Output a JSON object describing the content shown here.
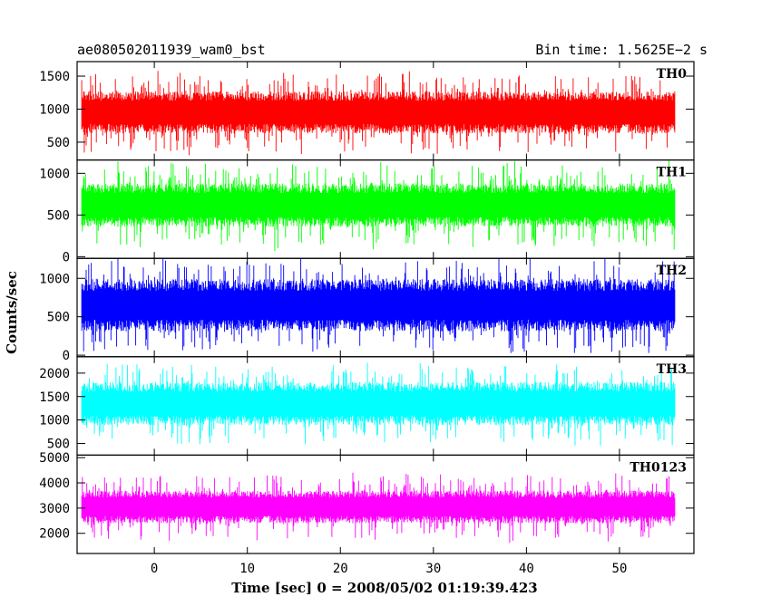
{
  "header": {
    "object_name": "ae080502011939_wam0_bst",
    "bin_time": "Bin time: 1.5625E−2 s"
  },
  "chart_data": {
    "type": "line",
    "title": "ae080502011939_wam0_bst",
    "subtitle": "Bin time: 1.5625E−2 s",
    "xlabel": "Time [sec] 0 = 2008/05/02 01:19:39.423",
    "ylabel": "Counts/sec",
    "xlim": [
      -8.3,
      58
    ],
    "x_ticks": [
      0,
      10,
      20,
      30,
      40,
      50
    ],
    "x_tick_labels": [
      "0",
      "10",
      "20",
      "30",
      "40",
      "50"
    ],
    "data_x_range": [
      -7.8,
      56.0
    ],
    "grid": false,
    "panels": [
      {
        "name": "TH0",
        "color": "#ff0000",
        "ylim": [
          230,
          1720
        ],
        "ticks": [
          500,
          1000,
          1500
        ],
        "tick_labels": [
          "500",
          "1000",
          "1500"
        ],
        "center": 950,
        "band": 320,
        "spike": 330,
        "floor": 230,
        "ceil": 1720
      },
      {
        "name": "TH1",
        "color": "#00ff00",
        "ylim": [
          -20,
          1160
        ],
        "ticks": [
          0,
          500,
          1000
        ],
        "tick_labels": [
          "0",
          "500",
          "1000"
        ],
        "center": 620,
        "band": 260,
        "spike": 300,
        "floor": 40,
        "ceil": 1160
      },
      {
        "name": "TH2",
        "color": "#0000ff",
        "ylim": [
          -20,
          1260
        ],
        "ticks": [
          0,
          500,
          1000
        ],
        "tick_labels": [
          "0",
          "500",
          "1000"
        ],
        "center": 650,
        "band": 340,
        "spike": 320,
        "floor": 30,
        "ceil": 1260
      },
      {
        "name": "TH3",
        "color": "#00ffff",
        "ylim": [
          250,
          2350
        ],
        "ticks": [
          500,
          1000,
          1500,
          2000
        ],
        "tick_labels": [
          "500",
          "1000",
          "1500",
          "2000"
        ],
        "center": 1350,
        "band": 460,
        "spike": 460,
        "floor": 260,
        "ceil": 2350
      },
      {
        "name": "TH0123",
        "color": "#ff00ff",
        "ylim": [
          1200,
          5100
        ],
        "ticks": [
          2000,
          3000,
          4000,
          5000
        ],
        "tick_labels": [
          "2000",
          "3000",
          "4000",
          "5000"
        ],
        "center": 3050,
        "band": 650,
        "spike": 800,
        "floor": 1200,
        "ceil": 5000
      }
    ]
  }
}
